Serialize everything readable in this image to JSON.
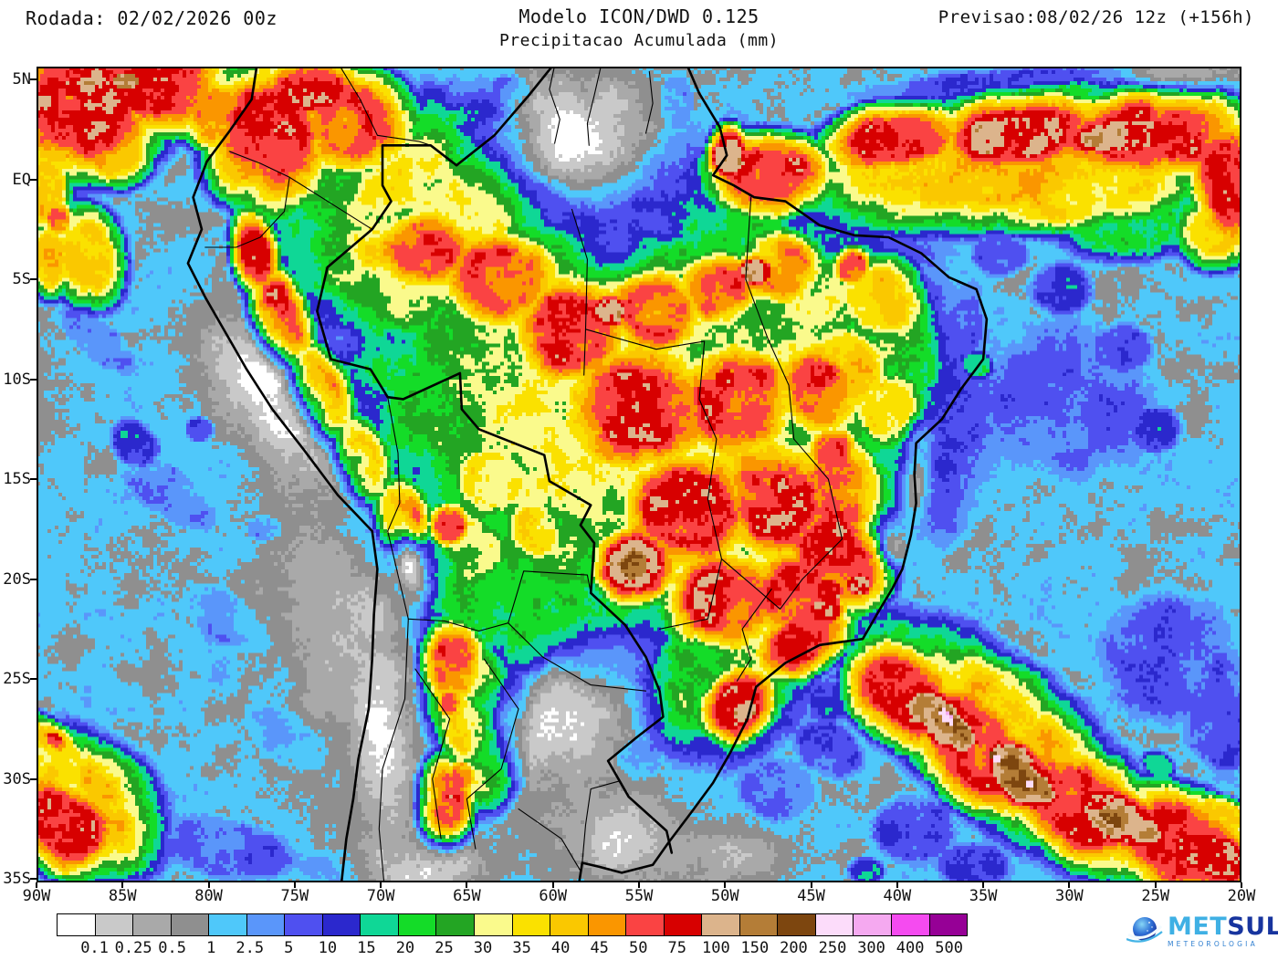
{
  "header": {
    "run_label": "Rodada: 02/02/2026 00z",
    "model_title": "Modelo ICON/DWD 0.125",
    "subtitle": "Precipitacao Acumulada (mm)",
    "forecast_label": "Previsao:08/02/26 12z (+156h)"
  },
  "axes": {
    "y": [
      "5N",
      "EQ",
      "5S",
      "10S",
      "15S",
      "20S",
      "25S",
      "30S",
      "35S"
    ],
    "x": [
      "90W",
      "85W",
      "80W",
      "75W",
      "70W",
      "65W",
      "60W",
      "55W",
      "50W",
      "45W",
      "40W",
      "35W",
      "30W",
      "25W",
      "20W"
    ]
  },
  "legend": {
    "values": [
      "0.1",
      "0.25",
      "0.5",
      "1",
      "2.5",
      "5",
      "10",
      "15",
      "20",
      "25",
      "30",
      "35",
      "40",
      "45",
      "50",
      "75",
      "100",
      "150",
      "200",
      "250",
      "300",
      "400",
      "500"
    ],
    "colors": [
      "#ffffff",
      "#c9c9c9",
      "#a9a9a9",
      "#8f8f8f",
      "#4fc8fa",
      "#5a96fa",
      "#4f50f0",
      "#2b28cd",
      "#0fd796",
      "#14dc28",
      "#23a523",
      "#fafa8c",
      "#fae100",
      "#fac800",
      "#fa9600",
      "#fa4343",
      "#d70000",
      "#dcb48c",
      "#b47d37",
      "#7d460f",
      "#fcdcfa",
      "#f5a9f0",
      "#f54bf0",
      "#960096"
    ]
  },
  "logo": {
    "met": "MET",
    "sul": "SUL",
    "tagline": "METEOROLOGIA"
  }
}
